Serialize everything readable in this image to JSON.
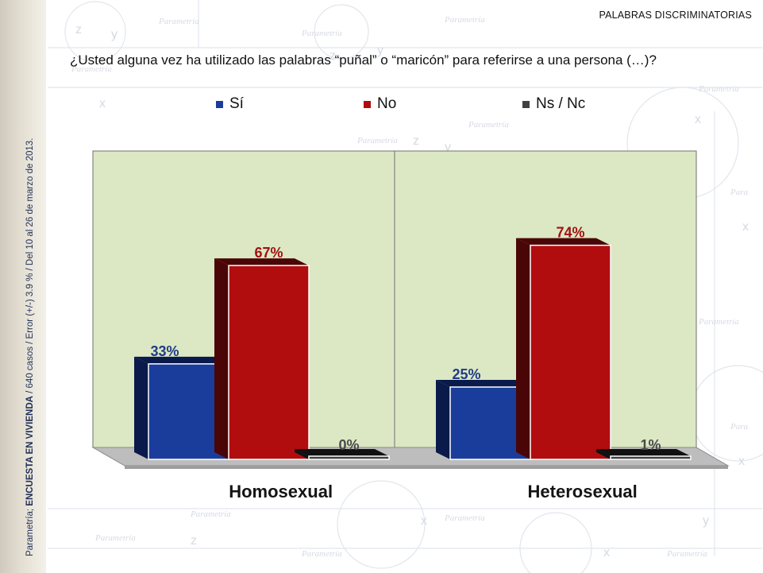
{
  "header": {
    "label": "PALABRAS DISCRIMINATORIAS"
  },
  "question": "¿Usted alguna vez ha utilizado las palabras “puñal” o “maricón” para referirse a una persona (…)?",
  "source": {
    "prefix": "Parametría; ",
    "bold": "ENCUESTA EN VIVIENDA",
    "suffix": " / 640 casos / Error (+/-) 3.9 % / Del 10 al 26 de marzo de 2013."
  },
  "watermark": {
    "brand": "Parametría"
  },
  "colors": {
    "si": "#1a3d9c",
    "no": "#b10d0f",
    "ns": "#404040",
    "si_label": "#1f3c88",
    "no_label": "#a11012",
    "ns_label": "#4a4a4a",
    "plot_bg": "#dce8c4",
    "floor": "#bdbdbd"
  },
  "chart_data": {
    "type": "bar",
    "title": "",
    "categories": [
      "Homosexual",
      "Heterosexual"
    ],
    "series": [
      {
        "name": "Sí",
        "values": [
          33,
          25
        ],
        "labels": [
          "33%",
          "25%"
        ]
      },
      {
        "name": "No",
        "values": [
          67,
          74
        ],
        "labels": [
          "67%",
          "74%"
        ]
      },
      {
        "name": "Ns / Nc",
        "values": [
          0,
          1
        ],
        "labels": [
          "0%",
          "1%"
        ]
      }
    ],
    "ylim": [
      0,
      100
    ],
    "unit": "%",
    "legend_position": "top",
    "grid": false
  }
}
